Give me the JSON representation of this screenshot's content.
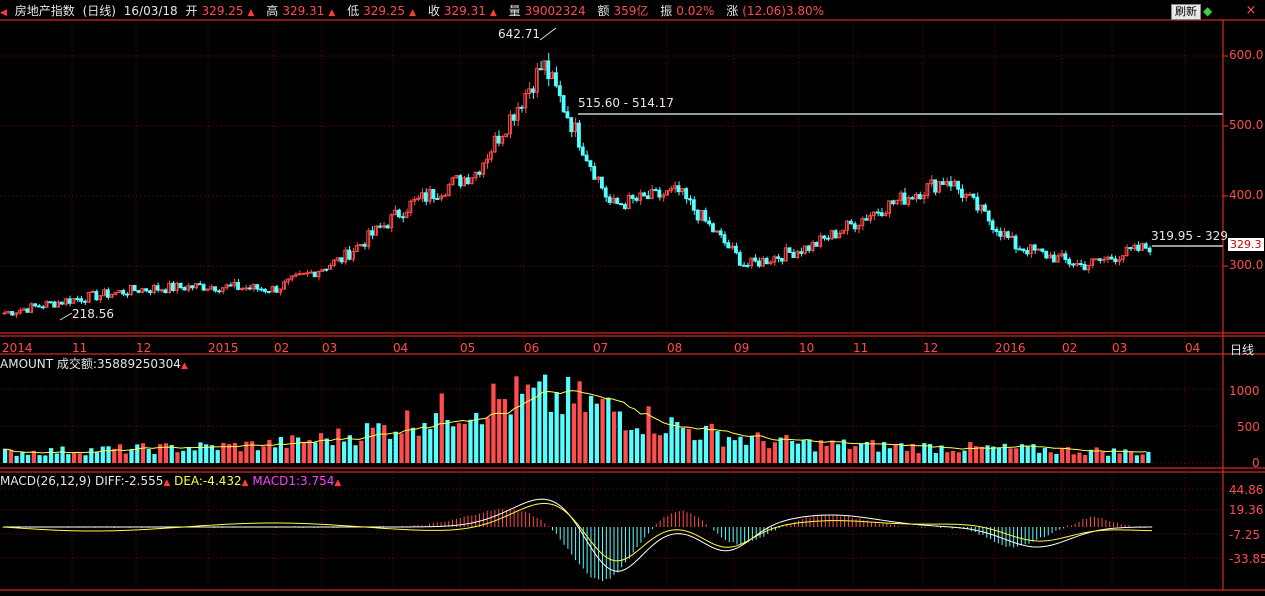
{
  "header": {
    "title": "房地产指数",
    "period": "(日线)",
    "date": "16/03/18",
    "open_label": "开",
    "open_value": "329.25",
    "high_label": "高",
    "high_value": "329.31",
    "low_label": "低",
    "low_value": "329.25",
    "close_label": "收",
    "close_value": "329.31",
    "volume_label": "量",
    "volume_value": "39002324",
    "amount_label": "额",
    "amount_value": "359亿",
    "amplitude_label": "振",
    "amplitude_value": "0.02%",
    "change_label": "涨",
    "change_value": "(12.06)3.80%"
  },
  "buttons": {
    "refresh": "刷新",
    "close": "×"
  },
  "price_panel": {
    "y_ticks": [
      "600.0",
      "500.0",
      "400.0",
      "300.0"
    ],
    "current_price_tag": "329.3",
    "annotations": {
      "peak": "642.71",
      "low": "218.56",
      "resist_line": "515.60 - 514.17",
      "support_line": "319.95 - 329"
    }
  },
  "x_axis": {
    "labels": [
      "2014",
      "11",
      "12",
      "2015",
      "02",
      "03",
      "04",
      "05",
      "06",
      "07",
      "08",
      "09",
      "10",
      "11",
      "12",
      "2016",
      "02",
      "03",
      "04"
    ],
    "period_label": "日线"
  },
  "amount_panel": {
    "label": "AMOUNT 成交额:35889250304",
    "y_ticks": [
      "1000",
      "500",
      "0"
    ]
  },
  "macd_panel": {
    "label": "MACD(26,12,9)",
    "diff_label": "DIFF:-2.555",
    "dea_label": "DEA:-4.432",
    "macd_label": "MACD1:3.754",
    "y_ticks": [
      "44.86",
      "19.36",
      "-7.25",
      "-33.85"
    ]
  },
  "chart_data": {
    "type": "line",
    "x": [
      "2014-10",
      "2014-11",
      "2014-12",
      "2015-01",
      "2015-02",
      "2015-03",
      "2015-04",
      "2015-05",
      "2015-06",
      "2015-07",
      "2015-08",
      "2015-09",
      "2015-10",
      "2015-11",
      "2015-12",
      "2016-01",
      "2016-02",
      "2016-03"
    ],
    "series": [
      {
        "name": "房地产指数",
        "values": [
          230,
          250,
          265,
          270,
          265,
          310,
          390,
          440,
          600,
          390,
          410,
          300,
          330,
          385,
          430,
          330,
          300,
          329
        ]
      }
    ],
    "ylim": [
      200,
      660
    ],
    "colors": {
      "up": "#ff4c4c",
      "down": "#54ffff",
      "grid": "#8b0000",
      "axis": "#ff3030"
    }
  }
}
